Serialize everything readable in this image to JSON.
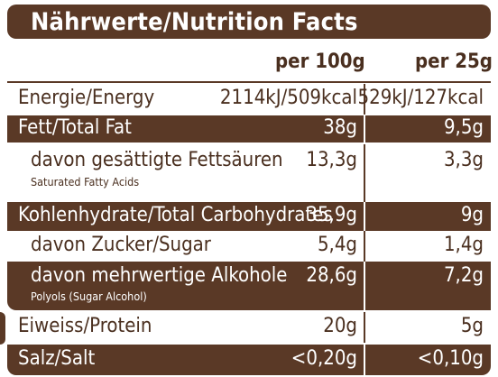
{
  "title": "Nährwerte/Nutrition Facts",
  "columns": {
    "per100": "per 100g",
    "per25": "per 25g"
  },
  "rows": {
    "energy": {
      "label": "Energie/Energy",
      "v100": "2114kJ/509kcal",
      "v25": "529kJ/127kcal"
    },
    "fat": {
      "label": "Fett/Total Fat",
      "v100": "38g",
      "v25": "9,5g"
    },
    "saturated": {
      "label": "davon gesättigte Fettsäuren",
      "sub": "Saturated Fatty Acids",
      "v100": "13,3g",
      "v25": "3,3g"
    },
    "carbs": {
      "label": "Kohlenhydrate/Total Carbohydrates",
      "v100": "35,9g",
      "v25": "9g"
    },
    "sugar": {
      "label": "davon Zucker/Sugar",
      "v100": "5,4g",
      "v25": "1,4g"
    },
    "polyols": {
      "label": "davon mehrwertige Alkohole",
      "sub": "Polyols (Sugar Alcohol)",
      "v100": "28,6g",
      "v25": "7,2g"
    },
    "protein": {
      "label": "Eiweiss/Protein",
      "v100": "20g",
      "v25": "5g"
    },
    "salt": {
      "label": "Salz/Salt",
      "v100": "<0,20g",
      "v25": "<0,10g"
    }
  }
}
